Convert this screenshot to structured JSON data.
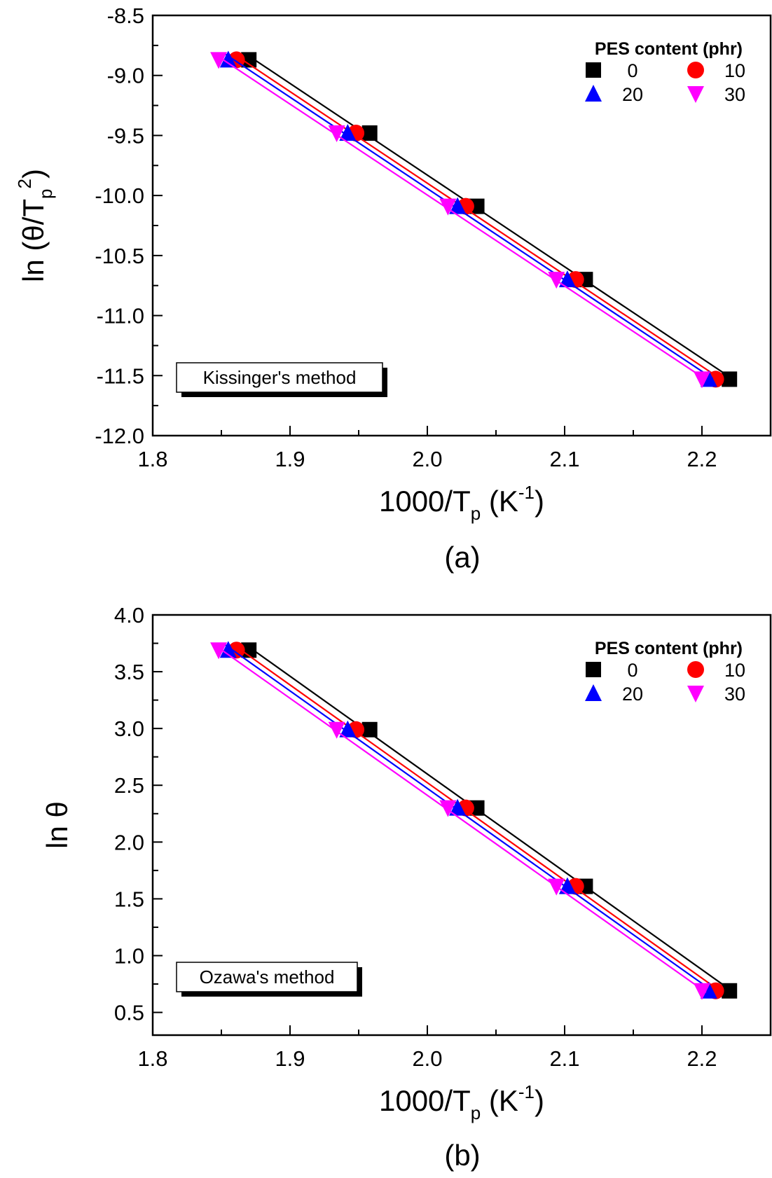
{
  "chart_data": [
    {
      "type": "scatter",
      "panel_label": "(a)",
      "method_box": "Kissinger's method",
      "xlabel": {
        "main": "1000/T",
        "sub": "p",
        "open": " (K",
        "sup": "-1",
        "close": ")"
      },
      "ylabel": {
        "main": "ln (θ/T",
        "sub": "p",
        "sup": "2",
        "close": ")"
      },
      "xlim": [
        1.8,
        2.25
      ],
      "ylim": [
        -12.0,
        -8.5
      ],
      "xticks": [
        "1.8",
        "1.9",
        "2.0",
        "2.1",
        "2.2"
      ],
      "yticks": [
        "-12.0",
        "-11.5",
        "-11.0",
        "-10.5",
        "-10.0",
        "-9.5",
        "-9.0",
        "-8.5"
      ],
      "grid": false,
      "legend_title": "PES content (phr)",
      "legend_position": "top-right",
      "series": [
        {
          "name": "0",
          "color": "#000000",
          "marker": "square",
          "x": [
            1.87,
            1.958,
            2.036,
            2.115,
            2.22
          ],
          "y": [
            -8.87,
            -9.48,
            -10.09,
            -10.7,
            -11.53
          ]
        },
        {
          "name": "10",
          "color": "#ff0000",
          "marker": "circle",
          "x": [
            1.861,
            1.948,
            2.028,
            2.108,
            2.21
          ],
          "y": [
            -8.87,
            -9.48,
            -10.09,
            -10.7,
            -11.53
          ]
        },
        {
          "name": "20",
          "color": "#0000ff",
          "marker": "triangle-up",
          "x": [
            1.855,
            1.942,
            2.022,
            2.102,
            2.205
          ],
          "y": [
            -8.87,
            -9.48,
            -10.09,
            -10.7,
            -11.53
          ]
        },
        {
          "name": "30",
          "color": "#ff00ff",
          "marker": "triangle-down",
          "x": [
            1.848,
            1.934,
            2.015,
            2.094,
            2.2
          ],
          "y": [
            -8.87,
            -9.48,
            -10.09,
            -10.7,
            -11.53
          ]
        }
      ]
    },
    {
      "type": "scatter",
      "panel_label": "(b)",
      "method_box": "Ozawa's method",
      "xlabel": {
        "main": "1000/T",
        "sub": "p",
        "open": " (K",
        "sup": "-1",
        "close": ")"
      },
      "ylabel": {
        "main": "ln θ",
        "sub": "",
        "sup": "",
        "close": ""
      },
      "xlim": [
        1.8,
        2.25
      ],
      "ylim": [
        0.3,
        4.0
      ],
      "xticks": [
        "1.8",
        "1.9",
        "2.0",
        "2.1",
        "2.2"
      ],
      "yticks": [
        "0.5",
        "1.0",
        "1.5",
        "2.0",
        "2.5",
        "3.0",
        "3.5",
        "4.0"
      ],
      "grid": false,
      "legend_title": "PES content (phr)",
      "legend_position": "top-right",
      "series": [
        {
          "name": "0",
          "color": "#000000",
          "marker": "square",
          "x": [
            1.87,
            1.958,
            2.036,
            2.115,
            2.22
          ],
          "y": [
            3.69,
            2.99,
            2.3,
            1.61,
            0.69
          ]
        },
        {
          "name": "10",
          "color": "#ff0000",
          "marker": "circle",
          "x": [
            1.861,
            1.948,
            2.028,
            2.108,
            2.21
          ],
          "y": [
            3.69,
            2.99,
            2.3,
            1.61,
            0.69
          ]
        },
        {
          "name": "20",
          "color": "#0000ff",
          "marker": "triangle-up",
          "x": [
            1.855,
            1.942,
            2.022,
            2.102,
            2.205
          ],
          "y": [
            3.69,
            2.99,
            2.3,
            1.61,
            0.69
          ]
        },
        {
          "name": "30",
          "color": "#ff00ff",
          "marker": "triangle-down",
          "x": [
            1.848,
            1.934,
            2.015,
            2.094,
            2.2
          ],
          "y": [
            3.69,
            2.99,
            2.3,
            1.61,
            0.69
          ]
        }
      ]
    }
  ]
}
